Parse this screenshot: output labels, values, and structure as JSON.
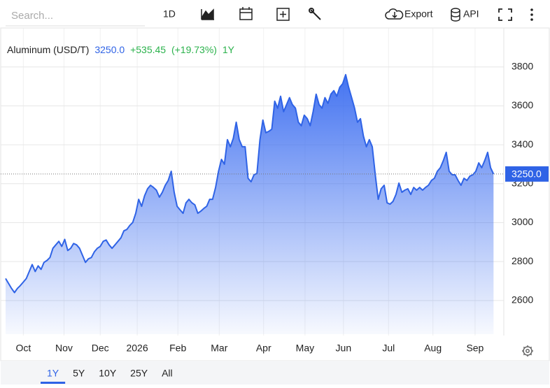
{
  "toolbar": {
    "search_placeholder": "Search...",
    "interval": "1D",
    "export": "Export",
    "api": "API"
  },
  "ranges": [
    "1Y",
    "5Y",
    "10Y",
    "25Y",
    "All"
  ],
  "chart_data": {
    "type": "area",
    "header": {
      "name": "Aluminum (USD/T)",
      "price": "3250.0",
      "change": "+535.45",
      "change_pct": "(+19.73%)",
      "period": "1Y"
    },
    "color": "#2f63e6",
    "grid": true,
    "ylim": [
      2420,
      4000
    ],
    "yticks": [
      2600,
      2800,
      3000,
      3200,
      3400,
      3600,
      3800
    ],
    "xlim": [
      0,
      168
    ],
    "xticks": [
      {
        "value": 6,
        "label": "Oct"
      },
      {
        "value": 19.75,
        "label": "Nov"
      },
      {
        "value": 32,
        "label": "Dec"
      },
      {
        "value": 44.5,
        "label": "2026"
      },
      {
        "value": 58.25,
        "label": "Feb"
      },
      {
        "value": 72.25,
        "label": "Mar"
      },
      {
        "value": 87.25,
        "label": "Apr"
      },
      {
        "value": 101.25,
        "label": "May"
      },
      {
        "value": 114.25,
        "label": "Jun"
      },
      {
        "value": 129.5,
        "label": "Jul"
      },
      {
        "value": 144.5,
        "label": "Aug"
      },
      {
        "value": 158.75,
        "label": "Sep"
      }
    ],
    "series": [
      {
        "color": "#2f63e6",
        "values": [
          2713,
          2688,
          2662,
          2641,
          2662,
          2677,
          2695,
          2713,
          2749,
          2785,
          2749,
          2778,
          2760,
          2796,
          2806,
          2821,
          2868,
          2886,
          2904,
          2878,
          2914,
          2857,
          2868,
          2893,
          2886,
          2868,
          2832,
          2796,
          2814,
          2821,
          2850,
          2868,
          2878,
          2904,
          2911,
          2886,
          2868,
          2886,
          2904,
          2922,
          2958,
          2965,
          2986,
          3001,
          3048,
          3120,
          3084,
          3138,
          3174,
          3192,
          3181,
          3167,
          3131,
          3156,
          3192,
          3217,
          3264,
          3156,
          3084,
          3066,
          3048,
          3102,
          3120,
          3102,
          3091,
          3048,
          3059,
          3073,
          3084,
          3120,
          3120,
          3181,
          3264,
          3325,
          3300,
          3426,
          3390,
          3433,
          3516,
          3426,
          3390,
          3390,
          3228,
          3210,
          3246,
          3253,
          3426,
          3527,
          3462,
          3469,
          3480,
          3624,
          3588,
          3649,
          3570,
          3606,
          3642,
          3606,
          3588,
          3516,
          3498,
          3552,
          3534,
          3498,
          3570,
          3660,
          3606,
          3588,
          3642,
          3613,
          3660,
          3678,
          3649,
          3696,
          3714,
          3760,
          3696,
          3642,
          3588,
          3516,
          3534,
          3444,
          3390,
          3426,
          3390,
          3246,
          3120,
          3174,
          3192,
          3102,
          3095,
          3109,
          3145,
          3203,
          3156,
          3167,
          3174,
          3145,
          3181,
          3167,
          3181,
          3167,
          3181,
          3192,
          3217,
          3228,
          3264,
          3282,
          3318,
          3361,
          3264,
          3246,
          3246,
          3217,
          3192,
          3228,
          3217,
          3239,
          3246,
          3264,
          3307,
          3282,
          3318,
          3361,
          3282,
          3250
        ]
      }
    ]
  }
}
